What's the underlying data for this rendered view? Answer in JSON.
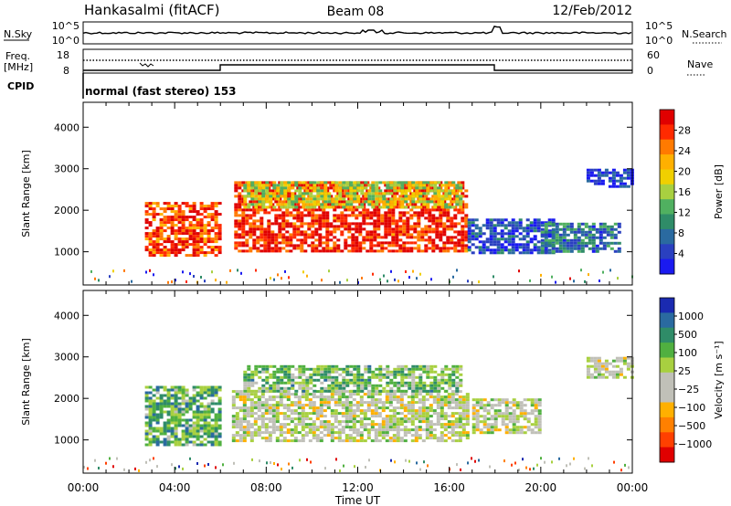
{
  "header": {
    "station": "Hankasalmi (fitACF)",
    "beam": "Beam 08",
    "date": "12/Feb/2012"
  },
  "panels": {
    "nsky": {
      "left_label": "N.Sky",
      "left_ticks": [
        "10^5",
        "10^0"
      ],
      "right_ticks": [
        "10^5",
        "10^0"
      ],
      "right_label": "N.Search"
    },
    "freq": {
      "left_label_top": "Freq.",
      "left_label_unit": "[MHz]",
      "left_ticks": [
        "18",
        "8"
      ],
      "right_ticks": [
        "60",
        "0"
      ],
      "right_label": "Nave",
      "cpid_label": "CPID",
      "mode_text": "normal (fast stereo) 153"
    }
  },
  "chart_data": [
    {
      "type": "heatmap",
      "name": "power",
      "ylabel": "Slant Range [km]",
      "ylim": [
        200,
        4600
      ],
      "yticks": [
        1000,
        2000,
        3000,
        4000
      ],
      "xlim": [
        0,
        24
      ],
      "colorbar": {
        "label": "Power [dB]",
        "ticks": [
          "28",
          "24",
          "20",
          "16",
          "12",
          "8",
          "4"
        ],
        "colors": [
          "#e00000",
          "#ff2a00",
          "#ff7a00",
          "#ffb000",
          "#f0d000",
          "#a8d040",
          "#50b060",
          "#2f8c68",
          "#2a6aa0",
          "#2a40c0",
          "#1a1af0"
        ]
      },
      "regions": [
        {
          "x0": 2.7,
          "x1": 6.0,
          "y0": 900,
          "y1": 2200,
          "level": 0.85
        },
        {
          "x0": 6.6,
          "x1": 16.8,
          "y0": 1000,
          "y1": 2700,
          "level": 0.9
        },
        {
          "x0": 7.0,
          "x1": 16.5,
          "y0": 2100,
          "y1": 2700,
          "level": 0.55
        },
        {
          "x0": 16.8,
          "x1": 20.5,
          "y0": 1000,
          "y1": 1800,
          "level": 0.15
        },
        {
          "x0": 20.0,
          "x1": 23.5,
          "y0": 1000,
          "y1": 1700,
          "level": 0.25
        },
        {
          "x0": 22.0,
          "x1": 24.0,
          "y0": 2600,
          "y1": 3000,
          "level": 0.1
        }
      ]
    },
    {
      "type": "heatmap",
      "name": "velocity",
      "ylabel": "Slant Range [km]",
      "ylim": [
        200,
        4600
      ],
      "yticks": [
        1000,
        2000,
        3000,
        4000
      ],
      "xlabel": "Time UT",
      "xlim": [
        0,
        24
      ],
      "xtick_labels": [
        "00:00",
        "04:00",
        "08:00",
        "12:00",
        "16:00",
        "20:00",
        "00:00"
      ],
      "colorbar": {
        "label": "Velocity [m s⁻¹]",
        "ticks": [
          "1000",
          "500",
          "100",
          "25",
          "−25",
          "−100",
          "−500",
          "−1000"
        ],
        "colors": [
          "#1a2ab0",
          "#2a6aa0",
          "#2f8c68",
          "#50b040",
          "#a8d040",
          "#c0c0b8",
          "#c0c0b8",
          "#ffb000",
          "#ff8000",
          "#ff4000",
          "#e00000"
        ]
      },
      "regions": [
        {
          "x0": 2.7,
          "x1": 6.0,
          "y0": 900,
          "y1": 2300,
          "level": 0.7
        },
        {
          "x0": 6.5,
          "x1": 16.8,
          "y0": 1000,
          "y1": 2200,
          "level": 0.5
        },
        {
          "x0": 7.0,
          "x1": 16.5,
          "y0": 2200,
          "y1": 2800,
          "level": 0.65
        },
        {
          "x0": 17.0,
          "x1": 20.0,
          "y0": 1200,
          "y1": 2000,
          "level": 0.5
        },
        {
          "x0": 22.0,
          "x1": 24.0,
          "y0": 2500,
          "y1": 3000,
          "level": 0.5
        }
      ]
    }
  ]
}
